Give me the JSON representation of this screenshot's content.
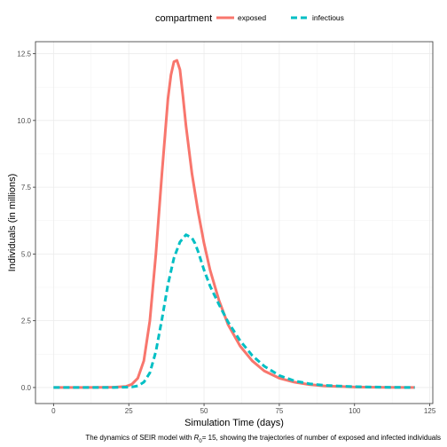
{
  "chart_data": {
    "type": "line",
    "xlabel": "Simulation Time (days)",
    "ylabel": "Individuals (in millions)",
    "caption": {
      "before": "The dynamics of SEIR model with ",
      "symbol": "R",
      "subscript": "0",
      "after": "= 15, showing the trajectories of number of exposed and infected individuals"
    },
    "xlim": [
      -6,
      126
    ],
    "ylim": [
      -0.6,
      12.95
    ],
    "x_ticks": [
      0,
      25,
      50,
      75,
      100,
      125
    ],
    "x_tick_labels": [
      "0",
      "25",
      "50",
      "75",
      "100",
      "125"
    ],
    "y_ticks": [
      0,
      2.5,
      5,
      7.5,
      10,
      12.5
    ],
    "y_tick_labels": [
      "0.0",
      "2.5",
      "5.0",
      "7.5",
      "10.0",
      "12.5"
    ],
    "grid": true,
    "legend": {
      "title": "compartment",
      "placement": "top"
    },
    "series": [
      {
        "name": "exposed",
        "color": "#F8766D",
        "dash": "solid",
        "x": [
          0,
          10,
          20,
          24,
          26,
          28,
          30,
          32,
          34,
          36,
          38,
          39,
          40,
          41,
          42,
          43,
          44,
          46,
          48,
          50,
          52,
          55,
          58,
          62,
          66,
          70,
          75,
          80,
          85,
          90,
          100,
          110,
          120
        ],
        "y": [
          0,
          0,
          0.01,
          0.04,
          0.12,
          0.35,
          1.0,
          2.5,
          5.0,
          8.0,
          10.8,
          11.7,
          12.2,
          12.25,
          11.9,
          10.9,
          9.8,
          8.0,
          6.6,
          5.4,
          4.4,
          3.25,
          2.35,
          1.55,
          1.0,
          0.62,
          0.35,
          0.2,
          0.11,
          0.06,
          0.02,
          0.005,
          0
        ]
      },
      {
        "name": "infectious",
        "color": "#00BFC4",
        "dash": "dashed",
        "x": [
          0,
          20,
          26,
          28,
          30,
          32,
          34,
          36,
          38,
          40,
          42,
          44,
          46,
          47,
          48,
          50,
          52,
          55,
          58,
          62,
          66,
          70,
          75,
          80,
          85,
          90,
          100,
          110,
          120
        ],
        "y": [
          0,
          0,
          0.02,
          0.06,
          0.2,
          0.55,
          1.35,
          2.55,
          3.85,
          4.85,
          5.45,
          5.72,
          5.6,
          5.4,
          5.1,
          4.4,
          3.8,
          3.1,
          2.45,
          1.75,
          1.2,
          0.8,
          0.45,
          0.25,
          0.14,
          0.08,
          0.03,
          0.01,
          0
        ]
      }
    ]
  }
}
